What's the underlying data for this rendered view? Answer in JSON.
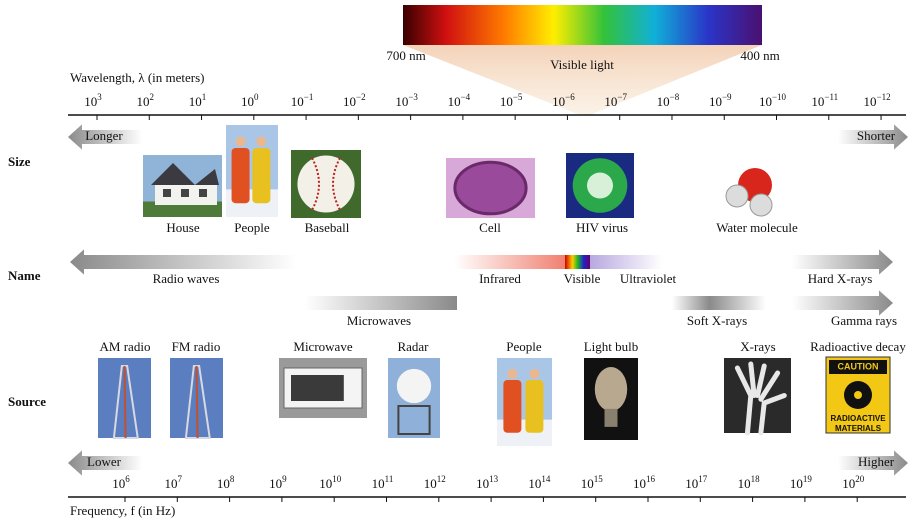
{
  "spectrum": {
    "long_label": "700 nm",
    "short_label": "400 nm",
    "title": "Visible light"
  },
  "wavelength_axis": {
    "title": "Wavelength, λ (in meters)",
    "base": "10",
    "exponents": [
      "3",
      "2",
      "1",
      "0",
      "−1",
      "−2",
      "−3",
      "−4",
      "−5",
      "−6",
      "−7",
      "−8",
      "−9",
      "−10",
      "−11",
      "−12"
    ]
  },
  "rows": {
    "size": "Size",
    "name": "Name",
    "source": "Source"
  },
  "direction": {
    "longer": "Longer",
    "shorter": "Shorter",
    "lower": "Lower",
    "higher": "Higher"
  },
  "size_items": [
    "House",
    "People",
    "Baseball",
    "Cell",
    "HIV virus",
    "Water molecule"
  ],
  "names": [
    "Radio waves",
    "Infrared",
    "Visible",
    "Ultraviolet",
    "Hard X-rays",
    "Microwaves",
    "Soft X-rays",
    "Gamma rays"
  ],
  "sources": [
    "AM radio",
    "FM radio",
    "Microwave",
    "Radar",
    "People",
    "Light bulb",
    "X-rays",
    "Radioactive decay"
  ],
  "caution_sign": {
    "header": "CAUTION",
    "lines": [
      "RADIOACTIVE",
      "MATERIALS"
    ]
  },
  "frequency_axis": {
    "title": "Frequency, f (in Hz)",
    "base": "10",
    "exponents": [
      "6",
      "7",
      "8",
      "9",
      "10",
      "11",
      "12",
      "13",
      "14",
      "15",
      "16",
      "17",
      "18",
      "19",
      "20"
    ]
  }
}
